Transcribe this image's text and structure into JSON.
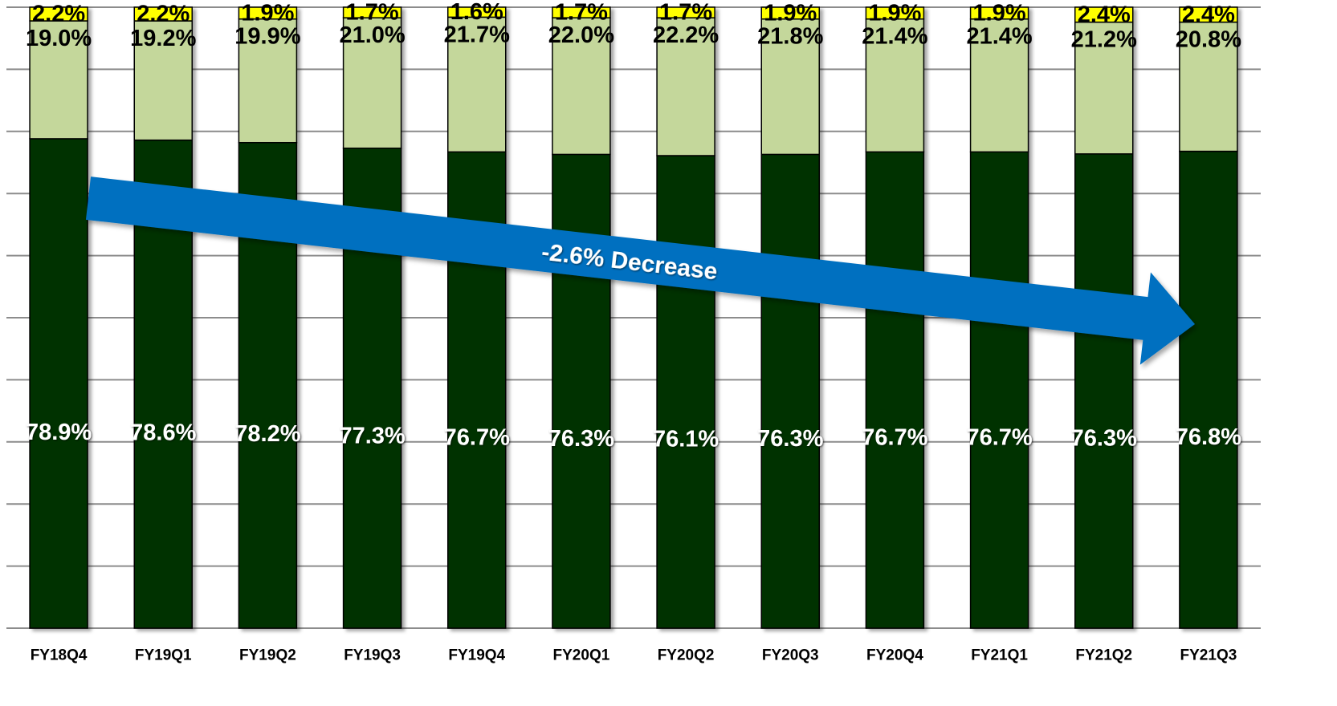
{
  "chart_data": {
    "type": "bar",
    "stacked": true,
    "percent_stacked": true,
    "categories": [
      "FY18Q4",
      "FY19Q1",
      "FY19Q2",
      "FY19Q3",
      "FY19Q4",
      "FY20Q1",
      "FY20Q2",
      "FY20Q3",
      "FY20Q4",
      "FY21Q1",
      "FY21Q2",
      "FY21Q3"
    ],
    "series": [
      {
        "color": "#003300",
        "label_color": "#ffffff",
        "values": [
          78.9,
          78.6,
          78.2,
          77.3,
          76.7,
          76.3,
          76.1,
          76.3,
          76.7,
          76.7,
          76.3,
          76.8
        ],
        "labels": [
          "78.9%",
          "78.6%",
          "78.2%",
          "77.3%",
          "76.7%",
          "76.3%",
          "76.1%",
          "76.3%",
          "76.7%",
          "76.7%",
          "76.3%",
          "76.8%"
        ]
      },
      {
        "color": "#c4d79b",
        "label_color": "#000000",
        "values": [
          19.0,
          19.2,
          19.9,
          21.0,
          21.7,
          22.0,
          22.2,
          21.8,
          21.4,
          21.4,
          21.2,
          20.8
        ],
        "labels": [
          "19.0%",
          "19.2%",
          "19.9%",
          "21.0%",
          "21.7%",
          "22.0%",
          "22.2%",
          "21.8%",
          "21.4%",
          "21.4%",
          "21.2%",
          "20.8%"
        ]
      },
      {
        "color": "#ffff00",
        "label_color": "#000000",
        "values": [
          2.2,
          2.2,
          1.9,
          1.7,
          1.6,
          1.7,
          1.7,
          1.9,
          1.9,
          1.9,
          2.4,
          2.4
        ],
        "labels": [
          "2.2%",
          "2.2%",
          "1.9%",
          "1.7%",
          "1.6%",
          "1.7%",
          "1.7%",
          "1.9%",
          "1.9%",
          "1.9%",
          "2.4%",
          "2.4%"
        ]
      }
    ],
    "ylim": [
      0,
      100
    ],
    "grid": true,
    "legend": "none",
    "annotation": {
      "text": "-2.6% Decrease",
      "color": "#0070c0",
      "start_category": "FY18Q4",
      "end_category": "FY21Q3"
    }
  }
}
